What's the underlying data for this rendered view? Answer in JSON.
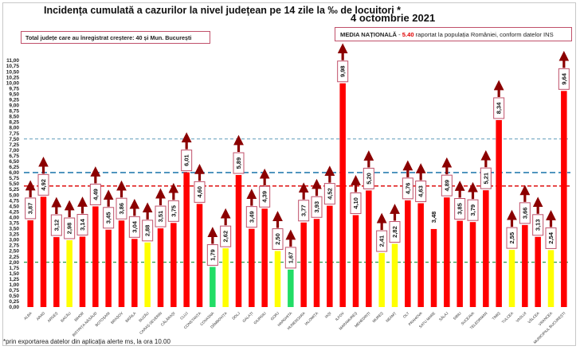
{
  "header": {
    "title": "Incidența cumulată a cazurilor la nivel județean pe 14 zile la ‰ de locuitori *",
    "date": "4 octombrie 2021",
    "increase_box": "Total județe care au înregistrat creștere:  40 și Mun. București",
    "national_label": "MEDIA NAȚIONALĂ",
    "national_sep": " - ",
    "national_value": "5.40",
    "national_suffix": " raportat la populația României, conform datelor INS"
  },
  "footnote": "*prin exportarea datelor din aplicația alerte ms, la ora 10.00",
  "colors": {
    "red": "#ff0000",
    "yellow": "#ffff00",
    "green": "#22dd66",
    "arrow": "#8b0000",
    "label_border": "#c0506a",
    "line_lightblue": "#7fb0c8",
    "line_blue": "#2a7fb0",
    "line_red": "#e02020",
    "line_green": "#2a9a4a"
  },
  "chart_data": {
    "type": "bar",
    "title": "Incidența cumulată a cazurilor la nivel județean pe 14 zile la ‰ de locuitori *",
    "subtitle": "4 octombrie 2021",
    "xlabel": "",
    "ylabel": "",
    "ylim": [
      0,
      11
    ],
    "yticks": [
      "0,00",
      "0,25",
      "0,50",
      "0,75",
      "1,00",
      "1,25",
      "1,50",
      "1,75",
      "2,00",
      "2,25",
      "2,50",
      "2,75",
      "3,00",
      "3,25",
      "3,50",
      "3,75",
      "4,00",
      "4,25",
      "4,50",
      "4,75",
      "5,00",
      "5,25",
      "5,50",
      "5,75",
      "6,00",
      "6,25",
      "6,50",
      "6,75",
      "7,00",
      "7,25",
      "7,50",
      "7,75",
      "8,00",
      "8,25",
      "8,50",
      "8,75",
      "9,00",
      "9,25",
      "9,50",
      "9,75",
      "10,00",
      "10,25",
      "10,50",
      "10,75",
      "11,00"
    ],
    "grid": false,
    "categories": [
      "ALBA",
      "ARAD",
      "ARGEȘ",
      "BACĂU",
      "BIHOR",
      "BISTRIȚA-NĂSĂUD",
      "BOTOȘANI",
      "BRAȘOV",
      "BRĂILA",
      "BUZĂU",
      "CARAȘ-SEVERIN",
      "CĂLĂRAȘI",
      "CLUJ",
      "CONSTANȚA",
      "COVASNA",
      "DÂMBOVIȚA",
      "DOLJ",
      "GALAȚI",
      "GIURGIU",
      "GORJ",
      "HARGHITA",
      "HUNEDOARA",
      "IALOMIȚA",
      "IAȘI",
      "ILFOV",
      "MARAMUREȘ",
      "MEHEDINȚI",
      "MUREȘ",
      "NEAMȚ",
      "OLT",
      "PRAHOVA",
      "SATU MARE",
      "SĂLAJ",
      "SIBIU",
      "SUCEAVA",
      "TELEORMAN",
      "TIMIȘ",
      "TULCEA",
      "VASLUI",
      "VÂLCEA",
      "VRANCEA",
      "MUNICIPIUL BUCUREȘTI"
    ],
    "values": [
      3.87,
      4.92,
      3.12,
      2.98,
      3.14,
      4.49,
      3.45,
      3.86,
      3.04,
      2.88,
      3.51,
      3.75,
      6.01,
      4.6,
      1.79,
      2.62,
      5.89,
      3.49,
      4.39,
      2.5,
      1.67,
      3.77,
      3.93,
      4.52,
      9.98,
      4.1,
      5.2,
      2.41,
      2.82,
      4.76,
      4.63,
      3.48,
      4.89,
      3.85,
      3.79,
      5.21,
      8.34,
      2.55,
      3.66,
      3.13,
      2.54,
      9.64
    ],
    "value_labels": [
      "3,87",
      "4,92",
      "3,12",
      "2,98",
      "3,14",
      "4,49",
      "3,45",
      "3,86",
      "3,04",
      "2,88",
      "3,51",
      "3,75",
      "6,01",
      "4,60",
      "1,79",
      "2,62",
      "5,89",
      "3,49",
      "4,39",
      "2,50",
      "1,67",
      "3,77",
      "3,93",
      "4,52",
      "9,98",
      "4,10",
      "5,20",
      "2,41",
      "2,82",
      "4,76",
      "4,63",
      "3,48",
      "4,89",
      "3,85",
      "3,79",
      "5,21",
      "8,34",
      "2,55",
      "3,66",
      "3,13",
      "2,54",
      "9,64"
    ],
    "bar_colors": [
      "red",
      "red",
      "red",
      "yellow",
      "red",
      "red",
      "red",
      "red",
      "red",
      "yellow",
      "red",
      "red",
      "red",
      "red",
      "green",
      "yellow",
      "red",
      "red",
      "red",
      "yellow",
      "green",
      "red",
      "red",
      "red",
      "red",
      "red",
      "red",
      "yellow",
      "yellow",
      "red",
      "red",
      "red",
      "red",
      "red",
      "red",
      "red",
      "red",
      "yellow",
      "red",
      "red",
      "yellow",
      "red"
    ],
    "increase_arrow": [
      true,
      true,
      true,
      true,
      true,
      true,
      true,
      true,
      true,
      true,
      true,
      true,
      true,
      true,
      true,
      true,
      true,
      true,
      true,
      true,
      true,
      true,
      true,
      true,
      true,
      true,
      true,
      true,
      true,
      true,
      true,
      false,
      true,
      true,
      true,
      true,
      true,
      true,
      true,
      true,
      true,
      true
    ],
    "reference_lines": [
      {
        "name": "threshold-7.5",
        "value": 7.5,
        "color": "line_lightblue"
      },
      {
        "name": "threshold-6",
        "value": 6.0,
        "color": "line_blue"
      },
      {
        "name": "national-average",
        "value": 5.4,
        "color": "line_red"
      },
      {
        "name": "threshold-2",
        "value": 2.0,
        "color": "line_green"
      }
    ]
  }
}
